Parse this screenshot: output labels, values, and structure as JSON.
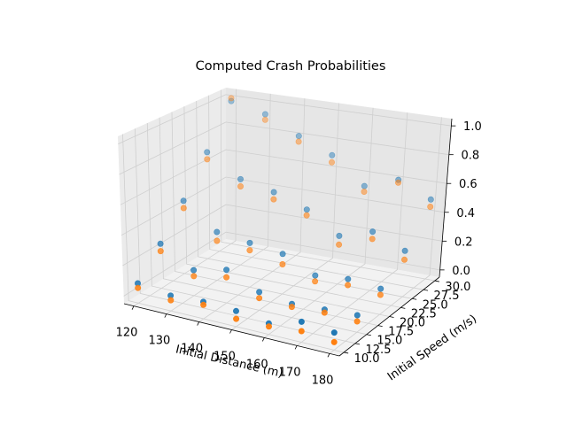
{
  "chart_data": {
    "type": "scatter",
    "projection": "3d",
    "title": "Computed Crash Probabilities",
    "xlabel": "Initial Distance (m)",
    "ylabel": "Initial Speed (m/s)",
    "zlabel": "",
    "xticks": [
      "120",
      "130",
      "140",
      "150",
      "160",
      "170",
      "180"
    ],
    "yticks": [
      "10.0",
      "12.5",
      "15.0",
      "17.5",
      "20.0",
      "22.5",
      "25.0",
      "27.5",
      "30.0"
    ],
    "zticks": [
      "0.0",
      "0.2",
      "0.4",
      "0.6",
      "0.8",
      "1.0"
    ],
    "xlim": [
      117,
      183
    ],
    "ylim": [
      9,
      31
    ],
    "zlim": [
      -0.05,
      1.05
    ],
    "grid": true,
    "series": [
      {
        "color": "#1f77b4",
        "points": [
          [
            120,
            10,
            0.08
          ],
          [
            130,
            10,
            0.05
          ],
          [
            140,
            10,
            0.06
          ],
          [
            150,
            10,
            0.05
          ],
          [
            160,
            10,
            0.02
          ],
          [
            170,
            10,
            0.08
          ],
          [
            180,
            10,
            0.06
          ],
          [
            120,
            15,
            0.25
          ],
          [
            130,
            15,
            0.12
          ],
          [
            140,
            15,
            0.17
          ],
          [
            150,
            15,
            0.07
          ],
          [
            160,
            15,
            0.04
          ],
          [
            170,
            15,
            0.05
          ],
          [
            180,
            15,
            0.06
          ],
          [
            120,
            20,
            0.45
          ],
          [
            130,
            20,
            0.28
          ],
          [
            140,
            20,
            0.25
          ],
          [
            150,
            20,
            0.22
          ],
          [
            160,
            20,
            0.12
          ],
          [
            170,
            20,
            0.14
          ],
          [
            180,
            20,
            0.12
          ],
          [
            120,
            25,
            0.7
          ],
          [
            130,
            25,
            0.55
          ],
          [
            140,
            25,
            0.5
          ],
          [
            150,
            25,
            0.42
          ],
          [
            160,
            25,
            0.28
          ],
          [
            170,
            25,
            0.35
          ],
          [
            180,
            25,
            0.26
          ],
          [
            120,
            30,
            0.98
          ],
          [
            130,
            30,
            0.92
          ],
          [
            140,
            30,
            0.8
          ],
          [
            150,
            30,
            0.7
          ],
          [
            160,
            30,
            0.52
          ],
          [
            170,
            30,
            0.6
          ],
          [
            180,
            30,
            0.5
          ]
        ]
      },
      {
        "color": "#ff7f0e",
        "points": [
          [
            120,
            10,
            0.05
          ],
          [
            130,
            10,
            0.02
          ],
          [
            140,
            10,
            0.04
          ],
          [
            150,
            10,
            0.0
          ],
          [
            160,
            10,
            0.0
          ],
          [
            170,
            10,
            0.02
          ],
          [
            180,
            10,
            0.0
          ],
          [
            120,
            15,
            0.2
          ],
          [
            130,
            15,
            0.08
          ],
          [
            140,
            15,
            0.12
          ],
          [
            150,
            15,
            0.03
          ],
          [
            160,
            15,
            0.02
          ],
          [
            170,
            15,
            0.03
          ],
          [
            180,
            15,
            0.02
          ],
          [
            120,
            20,
            0.4
          ],
          [
            130,
            20,
            0.22
          ],
          [
            140,
            20,
            0.2
          ],
          [
            150,
            20,
            0.15
          ],
          [
            160,
            20,
            0.08
          ],
          [
            170,
            20,
            0.1
          ],
          [
            180,
            20,
            0.08
          ],
          [
            120,
            25,
            0.65
          ],
          [
            130,
            25,
            0.5
          ],
          [
            140,
            25,
            0.45
          ],
          [
            150,
            25,
            0.38
          ],
          [
            160,
            25,
            0.22
          ],
          [
            170,
            25,
            0.3
          ],
          [
            180,
            25,
            0.2
          ],
          [
            120,
            30,
            1.0
          ],
          [
            130,
            30,
            0.88
          ],
          [
            140,
            30,
            0.76
          ],
          [
            150,
            30,
            0.65
          ],
          [
            160,
            30,
            0.48
          ],
          [
            170,
            30,
            0.58
          ],
          [
            180,
            30,
            0.45
          ]
        ]
      }
    ]
  }
}
